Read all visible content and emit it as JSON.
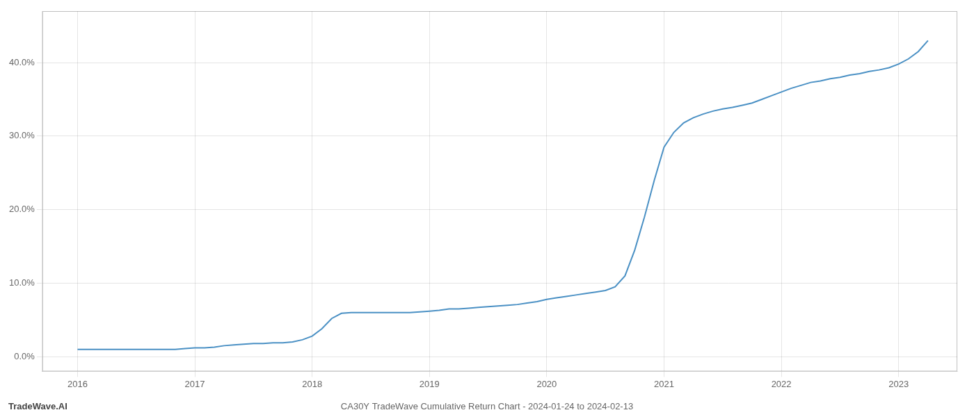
{
  "chart_data": {
    "type": "line",
    "title": "CA30Y TradeWave Cumulative Return Chart - 2024-01-24 to 2024-02-13",
    "annotations": [
      "TradeWave.AI"
    ],
    "x": [
      2016.0,
      2016.083,
      2016.167,
      2016.25,
      2016.333,
      2016.417,
      2016.5,
      2016.583,
      2016.667,
      2016.75,
      2016.833,
      2016.917,
      2017.0,
      2017.083,
      2017.167,
      2017.25,
      2017.333,
      2017.417,
      2017.5,
      2017.583,
      2017.667,
      2017.75,
      2017.833,
      2017.917,
      2018.0,
      2018.083,
      2018.167,
      2018.25,
      2018.333,
      2018.417,
      2018.5,
      2018.583,
      2018.667,
      2018.75,
      2018.833,
      2018.917,
      2019.0,
      2019.083,
      2019.167,
      2019.25,
      2019.333,
      2019.417,
      2019.5,
      2019.583,
      2019.667,
      2019.75,
      2019.833,
      2019.917,
      2020.0,
      2020.083,
      2020.167,
      2020.25,
      2020.333,
      2020.417,
      2020.5,
      2020.583,
      2020.667,
      2020.75,
      2020.833,
      2020.917,
      2021.0,
      2021.083,
      2021.167,
      2021.25,
      2021.333,
      2021.417,
      2021.5,
      2021.583,
      2021.667,
      2021.75,
      2021.833,
      2021.917,
      2022.0,
      2022.083,
      2022.167,
      2022.25,
      2022.333,
      2022.417,
      2022.5,
      2022.583,
      2022.667,
      2022.75,
      2022.833,
      2022.917,
      2023.0,
      2023.083,
      2023.167,
      2023.25
    ],
    "values": [
      1.0,
      1.0,
      1.0,
      1.0,
      1.0,
      1.0,
      1.0,
      1.0,
      1.0,
      1.0,
      1.0,
      1.1,
      1.2,
      1.2,
      1.3,
      1.5,
      1.6,
      1.7,
      1.8,
      1.8,
      1.9,
      1.9,
      2.0,
      2.3,
      2.8,
      3.8,
      5.2,
      5.9,
      6.0,
      6.0,
      6.0,
      6.0,
      6.0,
      6.0,
      6.0,
      6.1,
      6.2,
      6.3,
      6.5,
      6.5,
      6.6,
      6.7,
      6.8,
      6.9,
      7.0,
      7.1,
      7.3,
      7.5,
      7.8,
      8.0,
      8.2,
      8.4,
      8.6,
      8.8,
      9.0,
      9.5,
      11.0,
      14.5,
      19.0,
      24.0,
      28.5,
      30.5,
      31.8,
      32.5,
      33.0,
      33.4,
      33.7,
      33.9,
      34.2,
      34.5,
      35.0,
      35.5,
      36.0,
      36.5,
      36.9,
      37.3,
      37.5,
      37.8,
      38.0,
      38.3,
      38.5,
      38.8,
      39.0,
      39.3,
      39.8,
      40.5,
      41.5,
      43.0
    ],
    "color": "#4a90c4",
    "xlim": [
      2015.7,
      2023.5
    ],
    "xticks": [
      2016,
      2017,
      2018,
      2019,
      2020,
      2021,
      2022,
      2023
    ],
    "ylim": [
      -2,
      47
    ],
    "yticks": [
      {
        "value": 0.0,
        "label": "0.0%"
      },
      {
        "value": 10.0,
        "label": "10.0%"
      },
      {
        "value": 20.0,
        "label": "20.0%"
      },
      {
        "value": 30.0,
        "label": "30.0%"
      },
      {
        "value": 40.0,
        "label": "40.0%"
      }
    ],
    "grid": true
  }
}
